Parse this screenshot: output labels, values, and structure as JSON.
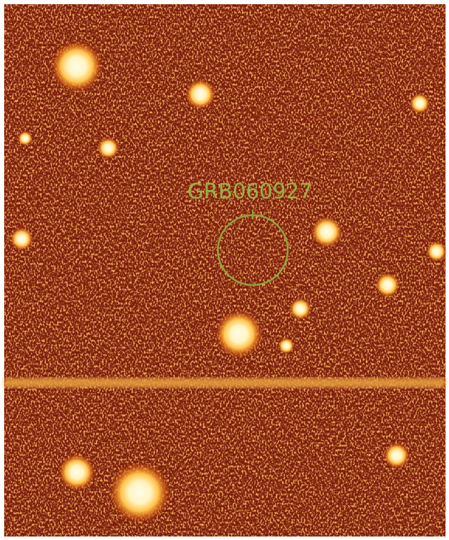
{
  "annotation": {
    "label": "GRB060927"
  }
}
